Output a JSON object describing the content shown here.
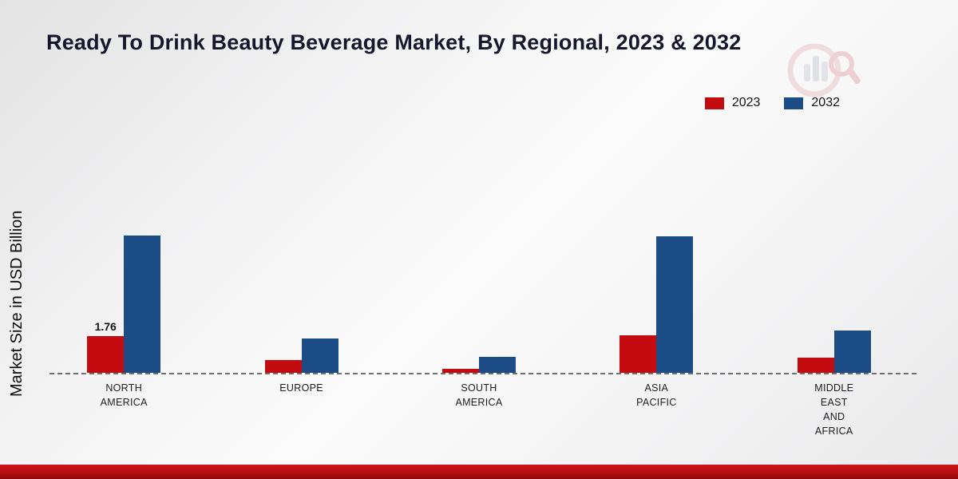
{
  "title": "Ready To Drink Beauty Beverage Market, By Regional, 2023 & 2032",
  "ylabel": "Market Size in USD Billion",
  "legend": [
    {
      "label": "2023",
      "color": "#c40b10"
    },
    {
      "label": "2032",
      "color": "#1b4c86"
    }
  ],
  "colors": {
    "baseline": "#6f6f6f",
    "bottom_band": "#b60d11",
    "title_text": "#16162c"
  },
  "chart_data": {
    "type": "bar",
    "title": "Ready To Drink Beauty Beverage Market, By Regional, 2023 & 2032",
    "xlabel": "",
    "ylabel": "Market Size in USD Billion",
    "unit": "USD Billion",
    "categories": [
      "NORTH AMERICA",
      "EUROPE",
      "SOUTH AMERICA",
      "ASIA PACIFIC",
      "MIDDLE EAST AND AFRICA"
    ],
    "categories_display": [
      "NORTH\nAMERICA",
      "EUROPE",
      "SOUTH\nAMERICA",
      "ASIA\nPACIFIC",
      "MIDDLE\nEAST\nAND\nAFRICA"
    ],
    "series": [
      {
        "name": "2023",
        "color": "#c40b10",
        "values": [
          1.76,
          0.6,
          0.18,
          1.8,
          0.72
        ]
      },
      {
        "name": "2032",
        "color": "#1b4c86",
        "values": [
          6.6,
          1.65,
          0.75,
          6.55,
          2.05
        ]
      }
    ],
    "annotations": [
      {
        "category": "NORTH AMERICA",
        "series": "2023",
        "text": "1.76"
      }
    ],
    "ylim": [
      0,
      12
    ],
    "grid": false,
    "legend_position": "top-right"
  }
}
